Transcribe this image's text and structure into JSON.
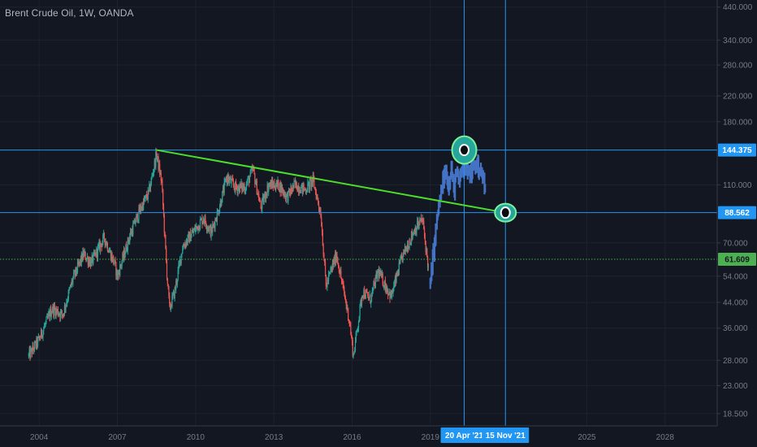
{
  "header": {
    "title": "Brent Crude Oil, 1W, OANDA"
  },
  "chart_data": {
    "type": "candlestick",
    "title": "Brent Crude Oil, 1W, OANDA",
    "x_range": [
      2002.5,
      2030.0
    ],
    "y_range_log": [
      16.8,
      465
    ],
    "price_ticks": [
      "440.000",
      "340.000",
      "280.000",
      "220.000",
      "180.000",
      "110.000",
      "70.000",
      "54.000",
      "44.000",
      "36.000",
      "28.000",
      "23.000",
      "18.500"
    ],
    "price_tick_values": [
      440,
      340,
      280,
      220,
      180,
      110,
      70,
      54,
      44,
      36,
      28,
      23,
      18.5
    ],
    "year_ticks": [
      {
        "label": "2004",
        "x": 2004
      },
      {
        "label": "2007",
        "x": 2007
      },
      {
        "label": "2010",
        "x": 2010
      },
      {
        "label": "2013",
        "x": 2013
      },
      {
        "label": "2016",
        "x": 2016
      },
      {
        "label": "2019",
        "x": 2019
      },
      {
        "label": "2025",
        "x": 2025
      },
      {
        "label": "2028",
        "x": 2028
      }
    ],
    "price_path": [
      [
        2003.6,
        29
      ],
      [
        2004.0,
        33
      ],
      [
        2004.5,
        42
      ],
      [
        2004.9,
        40
      ],
      [
        2005.3,
        53
      ],
      [
        2005.7,
        64
      ],
      [
        2006.0,
        60
      ],
      [
        2006.5,
        73
      ],
      [
        2006.9,
        59
      ],
      [
        2007.0,
        54
      ],
      [
        2007.5,
        75
      ],
      [
        2007.9,
        92
      ],
      [
        2008.2,
        103
      ],
      [
        2008.5,
        140
      ],
      [
        2008.7,
        112
      ],
      [
        2008.9,
        55
      ],
      [
        2009.0,
        42
      ],
      [
        2009.2,
        48
      ],
      [
        2009.5,
        68
      ],
      [
        2009.9,
        76
      ],
      [
        2010.3,
        85
      ],
      [
        2010.6,
        76
      ],
      [
        2010.9,
        92
      ],
      [
        2011.2,
        117
      ],
      [
        2011.5,
        108
      ],
      [
        2011.9,
        108
      ],
      [
        2012.2,
        124
      ],
      [
        2012.5,
        92
      ],
      [
        2012.8,
        110
      ],
      [
        2013.2,
        110
      ],
      [
        2013.5,
        100
      ],
      [
        2013.8,
        110
      ],
      [
        2014.2,
        106
      ],
      [
        2014.5,
        114
      ],
      [
        2014.8,
        88
      ],
      [
        2015.0,
        50
      ],
      [
        2015.4,
        64
      ],
      [
        2015.6,
        52
      ],
      [
        2015.9,
        38
      ],
      [
        2016.05,
        29
      ],
      [
        2016.4,
        48
      ],
      [
        2016.7,
        45
      ],
      [
        2017.0,
        56
      ],
      [
        2017.5,
        46
      ],
      [
        2017.9,
        62
      ],
      [
        2018.4,
        78
      ],
      [
        2018.7,
        84
      ],
      [
        2018.95,
        55
      ]
    ],
    "projection_path": [
      [
        2019.0,
        50
      ],
      [
        2019.1,
        62
      ],
      [
        2019.2,
        75
      ],
      [
        2019.3,
        90
      ],
      [
        2019.4,
        100
      ],
      [
        2019.5,
        115
      ],
      [
        2019.6,
        122
      ],
      [
        2019.7,
        110
      ],
      [
        2019.8,
        128
      ],
      [
        2019.9,
        105
      ],
      [
        2020.0,
        120
      ],
      [
        2020.1,
        112
      ],
      [
        2020.2,
        125
      ],
      [
        2020.35,
        128
      ],
      [
        2020.5,
        118
      ],
      [
        2020.65,
        126
      ],
      [
        2020.8,
        130
      ],
      [
        2020.95,
        120
      ],
      [
        2021.1,
        112
      ]
    ],
    "horizontal_lines": [
      {
        "name": "resistance",
        "value": 144.375,
        "label": "144.375",
        "color": "#2196f3"
      },
      {
        "name": "support",
        "value": 88.562,
        "label": "88.562",
        "color": "#2196f3"
      },
      {
        "name": "current-price",
        "value": 61.609,
        "label": "61.609",
        "color": "#4caf50",
        "style": "dotted"
      }
    ],
    "vertical_lines": [
      {
        "name": "date-1",
        "x": 2020.3,
        "label": "20 Apr '21"
      },
      {
        "name": "date-2",
        "x": 2021.88,
        "label": "15 Nov '21"
      }
    ],
    "trendline": {
      "from": [
        2008.5,
        144.375
      ],
      "to": [
        2021.88,
        88.562
      ],
      "color": "#4cdc2c"
    },
    "markers": [
      {
        "name": "marker-high",
        "x": 2020.3,
        "y": 144.375
      },
      {
        "name": "marker-target",
        "x": 2021.88,
        "y": 88.562
      }
    ],
    "colors": {
      "up": "#26a69a",
      "down": "#ef5350",
      "projection": "#4472c4",
      "background": "#131722",
      "grid": "#1e222d"
    }
  }
}
